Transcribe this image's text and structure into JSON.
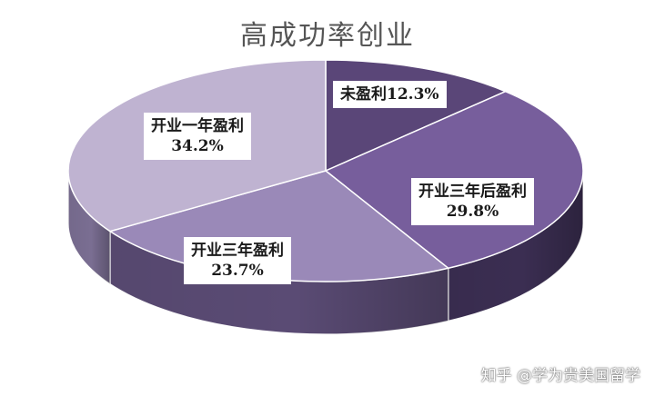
{
  "chart_data": {
    "type": "pie",
    "title": "高成功率创业",
    "categories": [
      "未盈利",
      "开业三年后盈利",
      "开业三年盈利",
      "开业一年盈利"
    ],
    "values": [
      12.3,
      29.8,
      23.7,
      34.2
    ],
    "value_labels": [
      "12.3%",
      "29.8%",
      "23.7%",
      "34.2%"
    ],
    "colors": [
      "#5a4678",
      "#775e9c",
      "#9a89b8",
      "#bfb3d1"
    ],
    "side_colors": [
      "#2e2440",
      "#3b2e52",
      "#5a4b74",
      "#7a6e92"
    ],
    "style": "3d-tilted",
    "legend": "none"
  },
  "watermark": "知乎 @学为贵美国留学"
}
